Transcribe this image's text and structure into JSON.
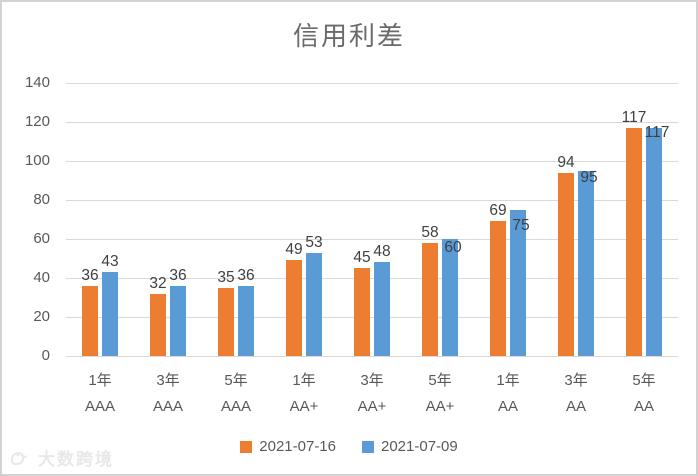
{
  "chart_data": {
    "type": "bar",
    "title": "信用利差",
    "categories": [
      [
        "1年",
        "AAA"
      ],
      [
        "3年",
        "AAA"
      ],
      [
        "5年",
        "AAA"
      ],
      [
        "1年",
        "AA+"
      ],
      [
        "3年",
        "AA+"
      ],
      [
        "5年",
        "AA+"
      ],
      [
        "1年",
        "AA"
      ],
      [
        "3年",
        "AA"
      ],
      [
        "5年",
        "AA"
      ]
    ],
    "series": [
      {
        "name": "2021-07-16",
        "color": "#ED7D31",
        "values": [
          36,
          32,
          35,
          49,
          45,
          58,
          69,
          94,
          117
        ]
      },
      {
        "name": "2021-07-09",
        "color": "#5B9BD5",
        "values": [
          43,
          36,
          36,
          53,
          48,
          60,
          75,
          95,
          117
        ]
      }
    ],
    "ylim": [
      0,
      140
    ],
    "yticks": [
      0,
      20,
      40,
      60,
      80,
      100,
      120,
      140
    ],
    "grid": true,
    "legend_position": "bottom",
    "data_labels": true,
    "label_stagger_groups": [
      5,
      6,
      7,
      8
    ]
  },
  "watermark": {
    "icon": "bird-logo-icon",
    "text": "大数跨境"
  },
  "colors": {
    "gridline": "#d9d9d9",
    "axis_text": "#595959",
    "data_label_text": "#404040",
    "title_text": "#6a6a6a",
    "frame_border": "#d2d2d2",
    "watermark_text": "#e8e8e8"
  }
}
